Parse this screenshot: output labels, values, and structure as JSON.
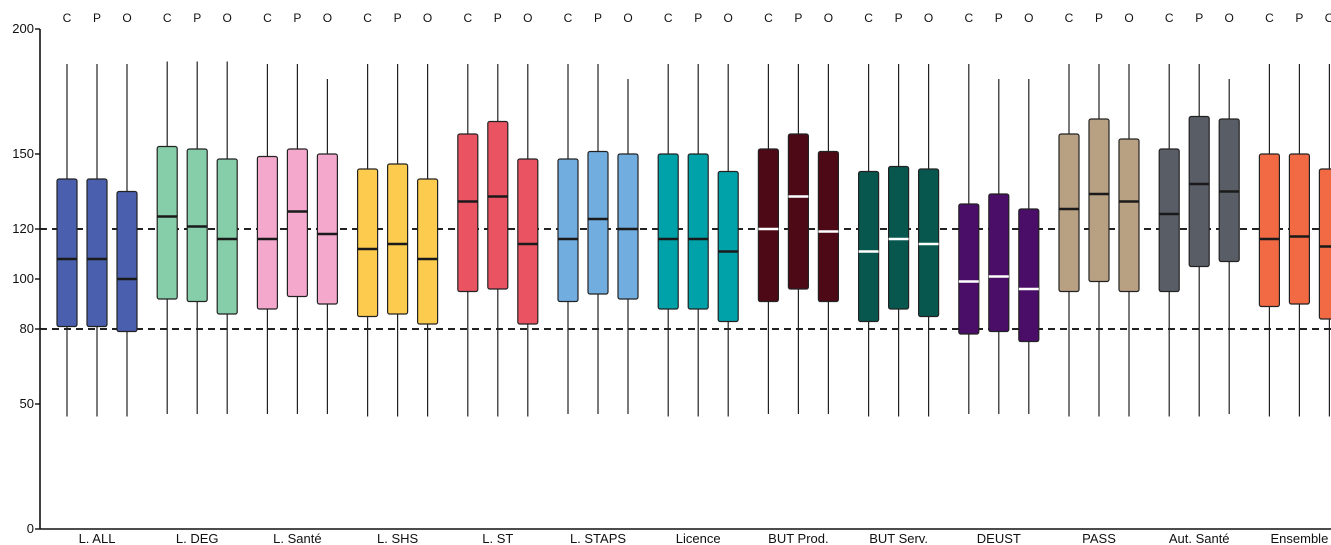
{
  "chart_data": {
    "type": "boxplot",
    "ylim": [
      0,
      200
    ],
    "y_ticks": [
      "0",
      "50",
      "80",
      "100",
      "120",
      "150",
      "200"
    ],
    "reference_lines": [
      120,
      80
    ],
    "subgroups": [
      "C",
      "P",
      "O"
    ],
    "categories": [
      {
        "label": "L. ALL",
        "color": "#4a5fae",
        "median_color": "#1a1a1a",
        "boxes": [
          {
            "min": 45,
            "q1": 81,
            "median": 108,
            "q3": 140,
            "max": 186
          },
          {
            "min": 45,
            "q1": 81,
            "median": 108,
            "q3": 140,
            "max": 186
          },
          {
            "min": 45,
            "q1": 79,
            "median": 100,
            "q3": 135,
            "max": 186
          }
        ]
      },
      {
        "label": "L. DEG",
        "color": "#86cda9",
        "median_color": "#1a1a1a",
        "boxes": [
          {
            "min": 46,
            "q1": 92,
            "median": 125,
            "q3": 153,
            "max": 187
          },
          {
            "min": 46,
            "q1": 91,
            "median": 121,
            "q3": 152,
            "max": 187
          },
          {
            "min": 46,
            "q1": 86,
            "median": 116,
            "q3": 148,
            "max": 187
          }
        ]
      },
      {
        "label": "L. Santé",
        "color": "#f4a9cc",
        "median_color": "#1a1a1a",
        "boxes": [
          {
            "min": 46,
            "q1": 88,
            "median": 116,
            "q3": 149,
            "max": 186
          },
          {
            "min": 46,
            "q1": 93,
            "median": 127,
            "q3": 152,
            "max": 186
          },
          {
            "min": 46,
            "q1": 90,
            "median": 118,
            "q3": 150,
            "max": 180
          }
        ]
      },
      {
        "label": "L. SHS",
        "color": "#fdcc4f",
        "median_color": "#1a1a1a",
        "boxes": [
          {
            "min": 45,
            "q1": 85,
            "median": 112,
            "q3": 144,
            "max": 186
          },
          {
            "min": 45,
            "q1": 86,
            "median": 114,
            "q3": 146,
            "max": 186
          },
          {
            "min": 45,
            "q1": 82,
            "median": 108,
            "q3": 140,
            "max": 186
          }
        ]
      },
      {
        "label": "L. ST",
        "color": "#ea5462",
        "median_color": "#1a1a1a",
        "boxes": [
          {
            "min": 45,
            "q1": 95,
            "median": 131,
            "q3": 158,
            "max": 186
          },
          {
            "min": 45,
            "q1": 96,
            "median": 133,
            "q3": 163,
            "max": 186
          },
          {
            "min": 45,
            "q1": 82,
            "median": 114,
            "q3": 148,
            "max": 186
          }
        ]
      },
      {
        "label": "L. STAPS",
        "color": "#72ade0",
        "median_color": "#1a1a1a",
        "boxes": [
          {
            "min": 46,
            "q1": 91,
            "median": 116,
            "q3": 148,
            "max": 186
          },
          {
            "min": 46,
            "q1": 94,
            "median": 124,
            "q3": 151,
            "max": 186
          },
          {
            "min": 46,
            "q1": 92,
            "median": 120,
            "q3": 150,
            "max": 180
          }
        ]
      },
      {
        "label": "Licence",
        "color": "#00a2a9",
        "median_color": "#1a1a1a",
        "boxes": [
          {
            "min": 45,
            "q1": 88,
            "median": 116,
            "q3": 150,
            "max": 186
          },
          {
            "min": 45,
            "q1": 88,
            "median": 116,
            "q3": 150,
            "max": 186
          },
          {
            "min": 45,
            "q1": 83,
            "median": 111,
            "q3": 143,
            "max": 186
          }
        ]
      },
      {
        "label": "BUT Prod.",
        "color": "#4d0a16",
        "median_color": "#ffffff",
        "boxes": [
          {
            "min": 46,
            "q1": 91,
            "median": 120,
            "q3": 152,
            "max": 186
          },
          {
            "min": 46,
            "q1": 96,
            "median": 133,
            "q3": 158,
            "max": 186
          },
          {
            "min": 46,
            "q1": 91,
            "median": 119,
            "q3": 151,
            "max": 186
          }
        ]
      },
      {
        "label": "BUT Serv.",
        "color": "#07574f",
        "median_color": "#ffffff",
        "boxes": [
          {
            "min": 45,
            "q1": 83,
            "median": 111,
            "q3": 143,
            "max": 186
          },
          {
            "min": 45,
            "q1": 88,
            "median": 116,
            "q3": 145,
            "max": 186
          },
          {
            "min": 45,
            "q1": 85,
            "median": 114,
            "q3": 144,
            "max": 186
          }
        ]
      },
      {
        "label": "DEUST",
        "color": "#4a0d68",
        "median_color": "#ffffff",
        "boxes": [
          {
            "min": 46,
            "q1": 78,
            "median": 99,
            "q3": 130,
            "max": 186
          },
          {
            "min": 46,
            "q1": 79,
            "median": 101,
            "q3": 134,
            "max": 180
          },
          {
            "min": 46,
            "q1": 75,
            "median": 96,
            "q3": 128,
            "max": 180
          }
        ]
      },
      {
        "label": "PASS",
        "color": "#b8a082",
        "median_color": "#1a1a1a",
        "boxes": [
          {
            "min": 45,
            "q1": 95,
            "median": 128,
            "q3": 158,
            "max": 186
          },
          {
            "min": 45,
            "q1": 99,
            "median": 134,
            "q3": 164,
            "max": 186
          },
          {
            "min": 45,
            "q1": 95,
            "median": 131,
            "q3": 156,
            "max": 186
          }
        ]
      },
      {
        "label": "Aut. Santé",
        "color": "#595e66",
        "median_color": "#1a1a1a",
        "boxes": [
          {
            "min": 45,
            "q1": 95,
            "median": 126,
            "q3": 152,
            "max": 186
          },
          {
            "min": 45,
            "q1": 105,
            "median": 138,
            "q3": 165,
            "max": 186
          },
          {
            "min": 46,
            "q1": 107,
            "median": 135,
            "q3": 164,
            "max": 180
          }
        ]
      },
      {
        "label": "Ensemble",
        "color": "#f26a44",
        "median_color": "#1a1a1a",
        "boxes": [
          {
            "min": 45,
            "q1": 89,
            "median": 116,
            "q3": 150,
            "max": 186
          },
          {
            "min": 45,
            "q1": 90,
            "median": 117,
            "q3": 150,
            "max": 186
          },
          {
            "min": 45,
            "q1": 84,
            "median": 113,
            "q3": 144,
            "max": 186
          }
        ]
      }
    ]
  }
}
